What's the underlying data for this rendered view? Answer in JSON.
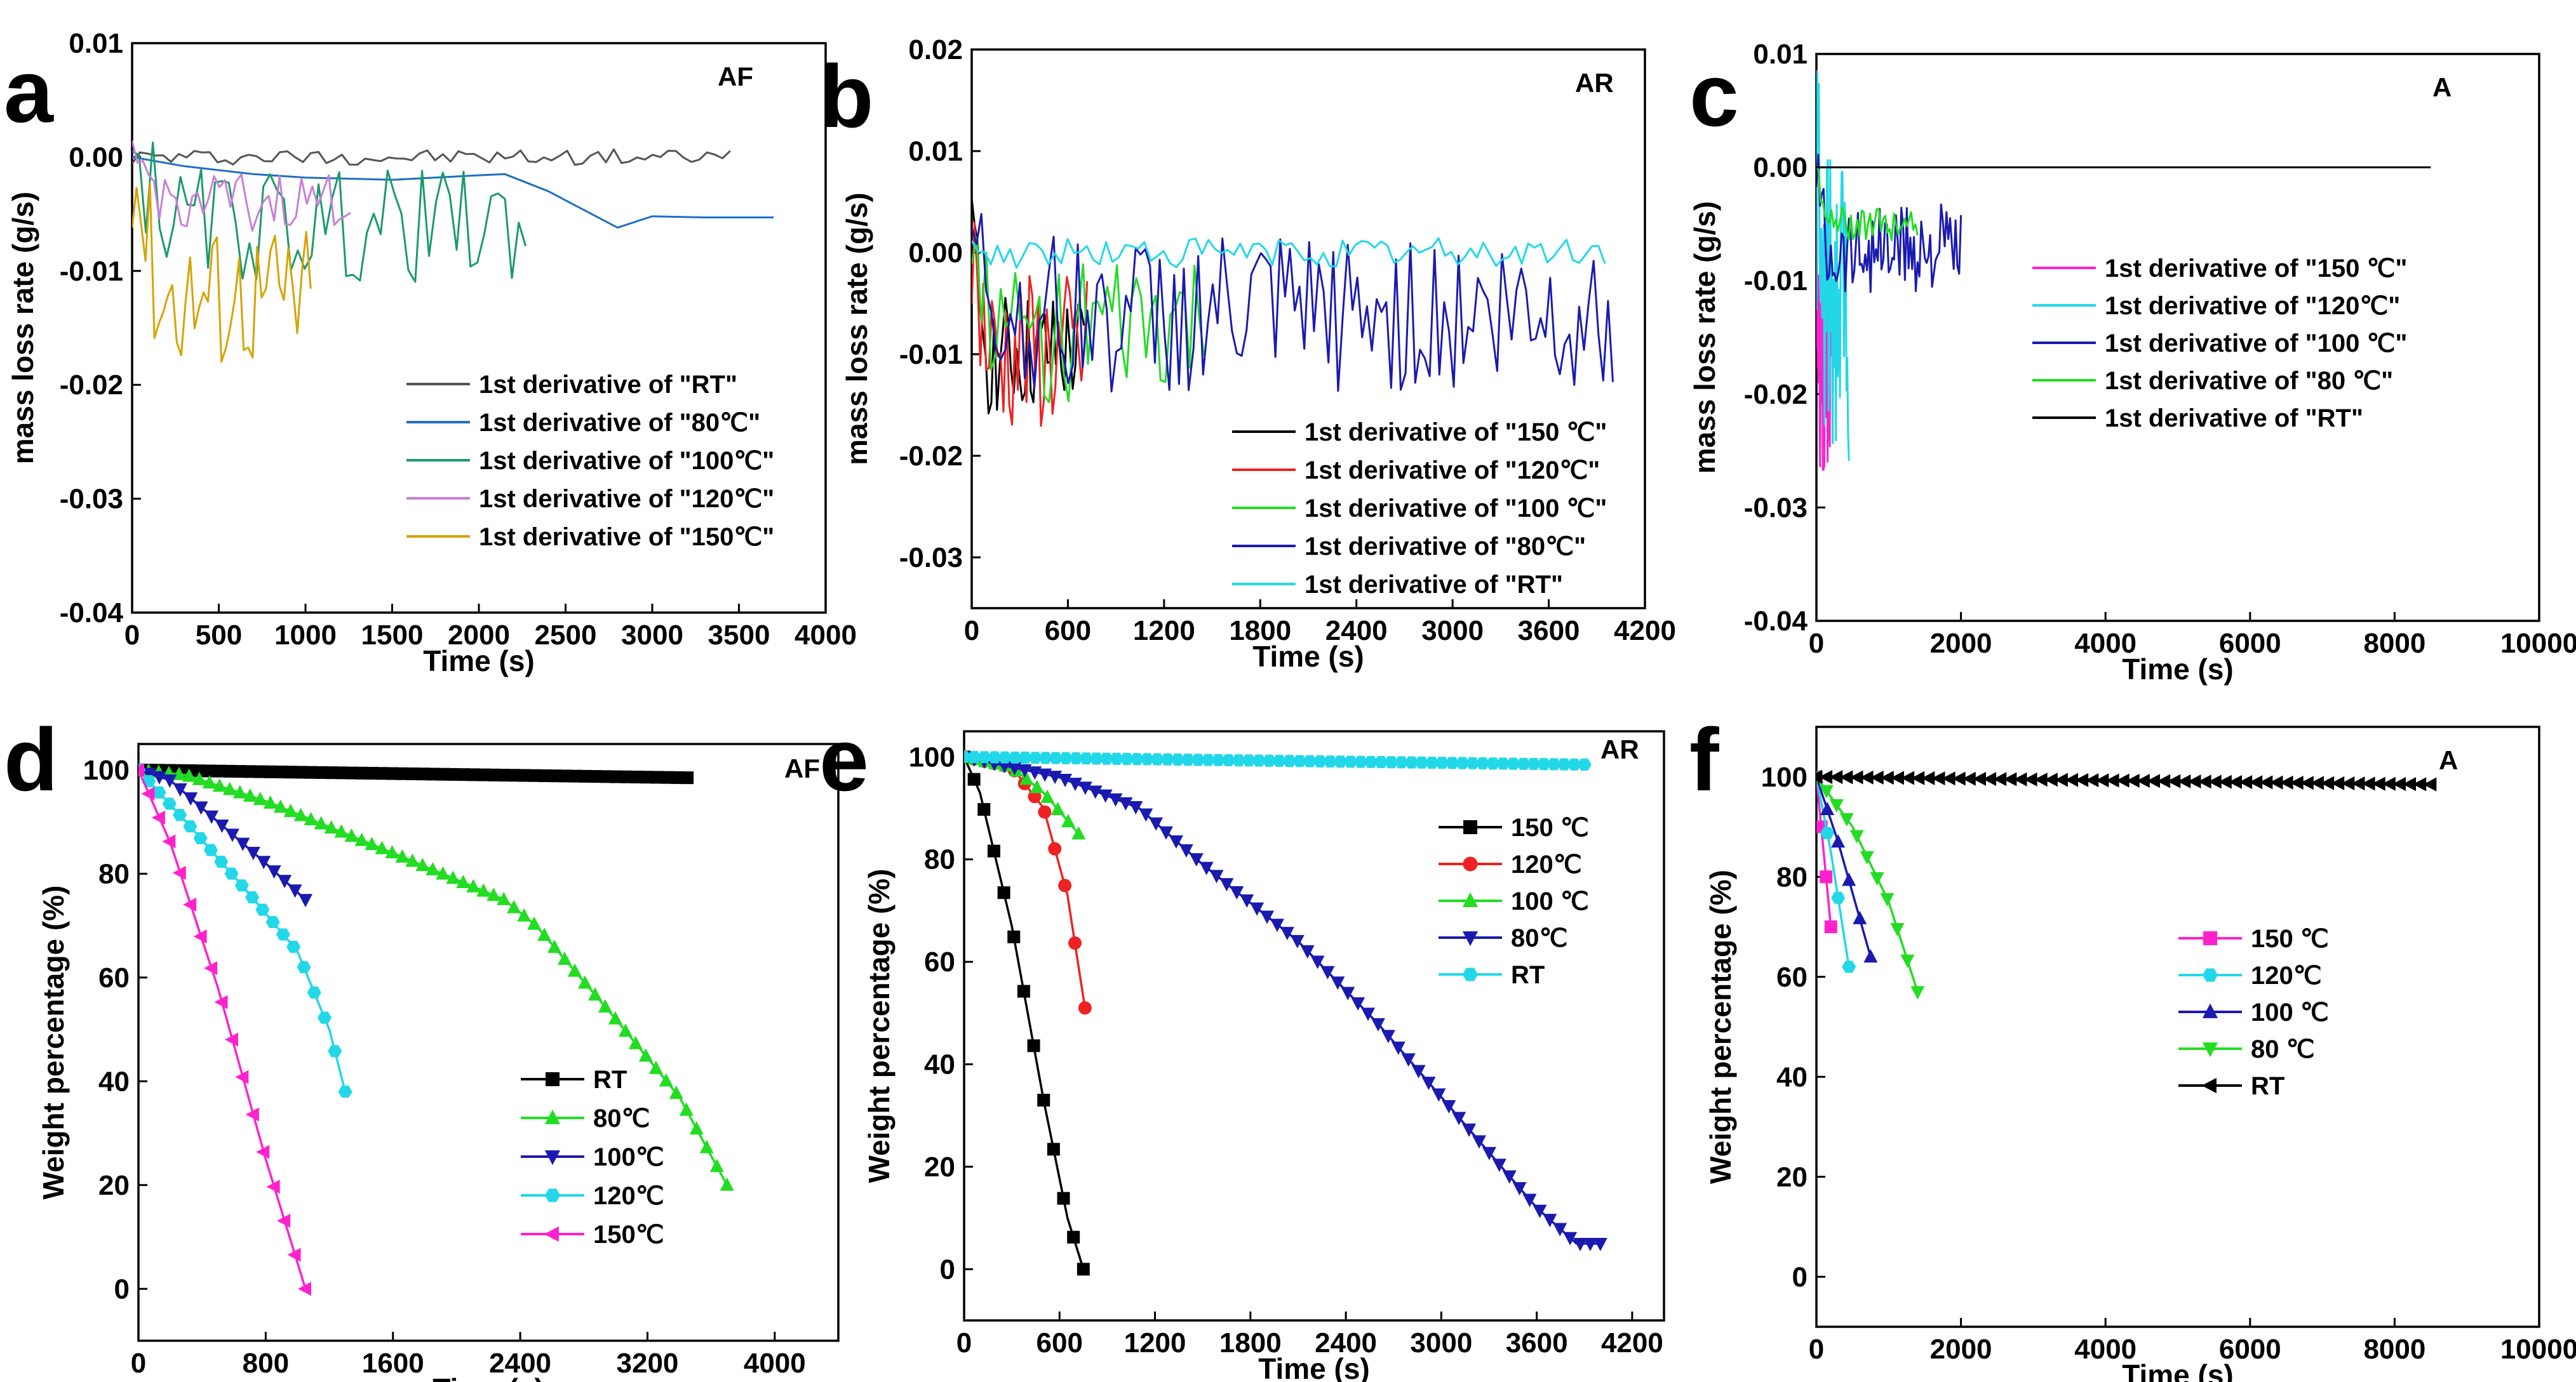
{
  "colors": {
    "black": "#000000",
    "gray": "#555555",
    "blue": "#1f6fc4",
    "teal": "#1a9a6a",
    "orchid": "#c77fd8",
    "gold": "#d6a300",
    "red": "#ee2222",
    "green": "#22dd22",
    "navy": "#1a1ab0",
    "cyan": "#22d8e8",
    "magenta": "#ff22cc"
  },
  "chart_data": [
    {
      "panel": "a",
      "type": "line",
      "tag": "AF",
      "xlabel": "Time (s)",
      "ylabel": "mass loss rate (g/s)",
      "xlim": [
        0,
        4000
      ],
      "ylim": [
        -0.04,
        0.01
      ],
      "xticks": [
        0,
        500,
        1000,
        1500,
        2000,
        2500,
        3000,
        3500,
        4000
      ],
      "xtick_labels": [
        "0",
        "500",
        "1000",
        "1500",
        "2000",
        "2500",
        "3000",
        "3500",
        "4000"
      ],
      "yticks": [
        0.01,
        0,
        -0.01,
        -0.02,
        -0.03,
        -0.04
      ],
      "ytick_labels": [
        "0.01",
        "0.00",
        "-0.01",
        "-0.02",
        "-0.03",
        "-0.04"
      ],
      "series": [
        {
          "name": "1st derivative of \"RT\"",
          "color": "#555555",
          "kind": "noisy",
          "x_end": 3450,
          "base": 0.0,
          "amp": 0.0007,
          "period": 45
        },
        {
          "name": "1st derivative of \"80℃\"",
          "color": "#1f6fc4",
          "kind": "line",
          "x": [
            0,
            300,
            700,
            1000,
            1500,
            2000,
            2150,
            2400,
            2800,
            3000,
            3300,
            3700
          ],
          "y": [
            0.0,
            -0.0008,
            -0.0015,
            -0.0018,
            -0.002,
            -0.0016,
            -0.0015,
            -0.003,
            -0.0062,
            -0.0052,
            -0.0053,
            -0.0053
          ]
        },
        {
          "name": "1st derivative of \"100℃\"",
          "color": "#1a9a6a",
          "kind": "noisy",
          "x_end": 2270,
          "base": -0.006,
          "amp": 0.005,
          "period": 40
        },
        {
          "name": "1st derivative of \"120℃\"",
          "color": "#c77fd8",
          "kind": "noisy",
          "x_end": 1260,
          "base": -0.004,
          "amp": 0.0025,
          "period": 40
        },
        {
          "name": "1st derivative of \"150℃\"",
          "color": "#d6a300",
          "kind": "noisy",
          "x_end": 1030,
          "base": -0.012,
          "amp": 0.0065,
          "period": 35
        }
      ]
    },
    {
      "panel": "b",
      "type": "line",
      "tag": "AR",
      "xlabel": "Time (s)",
      "ylabel": "mass loss rate (g/s)",
      "xlim": [
        0,
        4200
      ],
      "ylim": [
        -0.035,
        0.02
      ],
      "xticks": [
        0,
        600,
        1200,
        1800,
        2400,
        3000,
        3600,
        4200
      ],
      "xtick_labels": [
        "0",
        "600",
        "1200",
        "1800",
        "2400",
        "3000",
        "3600",
        "4200"
      ],
      "yticks": [
        0.02,
        0.01,
        0,
        -0.01,
        -0.02,
        -0.03
      ],
      "ytick_labels": [
        "0.02",
        "0.01",
        "0.00",
        "-0.01",
        "-0.02",
        "-0.03"
      ],
      "series": [
        {
          "name": "1st derivative of \"150 ℃\"",
          "color": "#000000",
          "kind": "noisy",
          "x_end": 700,
          "base": -0.01,
          "amp": 0.006,
          "period": 25
        },
        {
          "name": "1st derivative of \"120℃\"",
          "color": "#ee2222",
          "kind": "noisy",
          "x_end": 720,
          "base": -0.01,
          "amp": 0.008,
          "period": 25
        },
        {
          "name": "1st derivative of \"100 ℃\"",
          "color": "#22dd22",
          "kind": "noisy",
          "x_end": 1450,
          "base": -0.008,
          "amp": 0.007,
          "period": 30
        },
        {
          "name": "1st derivative of \"80℃\"",
          "color": "#1a1ab0",
          "kind": "noisy",
          "x_end": 4000,
          "base": -0.006,
          "amp": 0.008,
          "period": 30
        },
        {
          "name": "1st derivative of \"RT\"",
          "color": "#22d8e8",
          "kind": "noisy",
          "x_end": 3950,
          "base": 0.0,
          "amp": 0.0015,
          "period": 40
        }
      ]
    },
    {
      "panel": "c",
      "type": "line",
      "tag": "A",
      "xlabel": "Time (s)",
      "ylabel": "mass loss rate (g/s)",
      "xlim": [
        0,
        10000
      ],
      "ylim": [
        -0.04,
        0.01
      ],
      "xticks": [
        0,
        2000,
        4000,
        6000,
        8000,
        10000
      ],
      "xtick_labels": [
        "0",
        "2000",
        "4000",
        "6000",
        "8000",
        "10000"
      ],
      "yticks": [
        0.01,
        0,
        -0.01,
        -0.02,
        -0.03,
        -0.04
      ],
      "ytick_labels": [
        "0.01",
        "0.00",
        "-0.01",
        "-0.02",
        "-0.03",
        "-0.04"
      ],
      "series": [
        {
          "name": "1st derivative of \"150 ℃\"",
          "color": "#ff22cc",
          "kind": "noisy",
          "x_end": 200,
          "base": -0.015,
          "amp": 0.012,
          "period": 20
        },
        {
          "name": "1st derivative of \"120℃\"",
          "color": "#22d8e8",
          "kind": "noisy",
          "x_end": 450,
          "base": -0.012,
          "amp": 0.014,
          "period": 20
        },
        {
          "name": "1st derivative of \"100 ℃\"",
          "color": "#1a1ab0",
          "kind": "noisy",
          "x_end": 2000,
          "base": -0.007,
          "amp": 0.004,
          "period": 25
        },
        {
          "name": "1st derivative of \"80 ℃\"",
          "color": "#22dd22",
          "kind": "noisy",
          "x_end": 1400,
          "base": -0.005,
          "amp": 0.0015,
          "period": 30
        },
        {
          "name": "1st derivative of \"RT\"",
          "color": "#000000",
          "kind": "line",
          "x": [
            0,
            8500
          ],
          "y": [
            0.0,
            0.0
          ]
        }
      ]
    },
    {
      "panel": "d",
      "type": "line",
      "tag": "AF",
      "xlabel": "Time (s)",
      "ylabel": "Weight percentage (%)",
      "xlim": [
        0,
        4400
      ],
      "ylim": [
        -10,
        105
      ],
      "xticks": [
        0,
        800,
        1600,
        2400,
        3200,
        4000
      ],
      "xtick_labels": [
        "0",
        "800",
        "1600",
        "2400",
        "3200",
        "4000"
      ],
      "yticks": [
        0,
        20,
        40,
        60,
        80,
        100
      ],
      "ytick_labels": [
        "0",
        "20",
        "40",
        "60",
        "80",
        "100"
      ],
      "series": [
        {
          "name": "RT",
          "color": "#000000",
          "marker": "square",
          "x": [
            0,
            3450
          ],
          "y": [
            100,
            98.5
          ]
        },
        {
          "name": "80℃",
          "color": "#22dd22",
          "marker": "triangle-up",
          "x": [
            0,
            300,
            800,
            1600,
            2300,
            2500,
            3000,
            3400,
            3700
          ],
          "y": [
            100,
            99,
            94,
            84,
            75,
            70,
            52,
            37,
            20
          ]
        },
        {
          "name": "100℃",
          "color": "#1a1ab0",
          "marker": "triangle-down",
          "x": [
            0,
            200,
            500,
            800,
            1050
          ],
          "y": [
            100,
            98,
            90,
            82,
            75
          ]
        },
        {
          "name": "120℃",
          "color": "#22d8e8",
          "marker": "hexagon",
          "x": [
            0,
            300,
            700,
            1000,
            1200,
            1300
          ],
          "y": [
            100,
            90,
            76,
            65,
            50,
            38
          ]
        },
        {
          "name": "150℃",
          "color": "#ff22cc",
          "marker": "triangle-left",
          "x": [
            0,
            200,
            500,
            800,
            1050
          ],
          "y": [
            100,
            86,
            58,
            25,
            0
          ]
        }
      ]
    },
    {
      "panel": "e",
      "type": "line",
      "tag": "AR",
      "xlabel": "Time (s)",
      "ylabel": "Weight percentage (%)",
      "xlim": [
        0,
        4400
      ],
      "ylim": [
        -10,
        105
      ],
      "xticks": [
        0,
        600,
        1200,
        1800,
        2400,
        3000,
        3600,
        4200
      ],
      "xtick_labels": [
        "0",
        "600",
        "1200",
        "1800",
        "2400",
        "3000",
        "3600",
        "4200"
      ],
      "yticks": [
        0,
        20,
        40,
        60,
        80,
        100
      ],
      "ytick_labels": [
        "0",
        "20",
        "40",
        "60",
        "80",
        "100"
      ],
      "series": [
        {
          "name": "150 ℃",
          "color": "#000000",
          "marker": "square",
          "x": [
            0,
            100,
            300,
            500,
            650,
            750
          ],
          "y": [
            100,
            93,
            67,
            33,
            10,
            0
          ]
        },
        {
          "name": "120℃",
          "color": "#ee2222",
          "marker": "circle",
          "x": [
            0,
            300,
            500,
            650,
            760
          ],
          "y": [
            100,
            98,
            90,
            73,
            51
          ]
        },
        {
          "name": "100 ℃",
          "color": "#22dd22",
          "marker": "triangle-up",
          "x": [
            0,
            300,
            500,
            720
          ],
          "y": [
            100,
            98,
            93,
            85
          ]
        },
        {
          "name": "80℃",
          "color": "#1a1ab0",
          "marker": "triangle-down",
          "x": [
            0,
            600,
            1100,
            1500,
            2100,
            2600,
            3100,
            3600,
            3850,
            4000
          ],
          "y": [
            100,
            96,
            90,
            79,
            64,
            48,
            30,
            12,
            5,
            5
          ]
        },
        {
          "name": "RT",
          "color": "#22d8e8",
          "marker": "hexagon",
          "x": [
            0,
            3900
          ],
          "y": [
            100,
            98.5
          ]
        }
      ]
    },
    {
      "panel": "f",
      "type": "line",
      "tag": "A",
      "xlabel": "Time (s)",
      "ylabel": "Weight percentage (%)",
      "xlim": [
        0,
        10000
      ],
      "ylim": [
        -10,
        110
      ],
      "xticks": [
        0,
        2000,
        4000,
        6000,
        8000,
        10000
      ],
      "xtick_labels": [
        "0",
        "2000",
        "4000",
        "6000",
        "8000",
        "10000"
      ],
      "yticks": [
        0,
        20,
        40,
        60,
        80,
        100
      ],
      "ytick_labels": [
        "0",
        "20",
        "40",
        "60",
        "80",
        "100"
      ],
      "series": [
        {
          "name": "150 ℃",
          "color": "#ff22cc",
          "marker": "square",
          "x": [
            0,
            100,
            200
          ],
          "y": [
            100,
            85,
            70
          ]
        },
        {
          "name": "120℃",
          "color": "#22d8e8",
          "marker": "hexagon",
          "x": [
            0,
            200,
            450
          ],
          "y": [
            100,
            85,
            62
          ]
        },
        {
          "name": "100 ℃",
          "color": "#1a1ab0",
          "marker": "triangle-up",
          "x": [
            0,
            300,
            750
          ],
          "y": [
            100,
            87,
            64
          ]
        },
        {
          "name": "80 ℃",
          "color": "#22dd22",
          "marker": "triangle-down",
          "x": [
            0,
            500,
            1000,
            1400
          ],
          "y": [
            100,
            90,
            75,
            57
          ]
        },
        {
          "name": "RT",
          "color": "#000000",
          "marker": "triangle-left",
          "x": [
            0,
            8500
          ],
          "y": [
            100,
            98.5
          ]
        }
      ]
    }
  ]
}
